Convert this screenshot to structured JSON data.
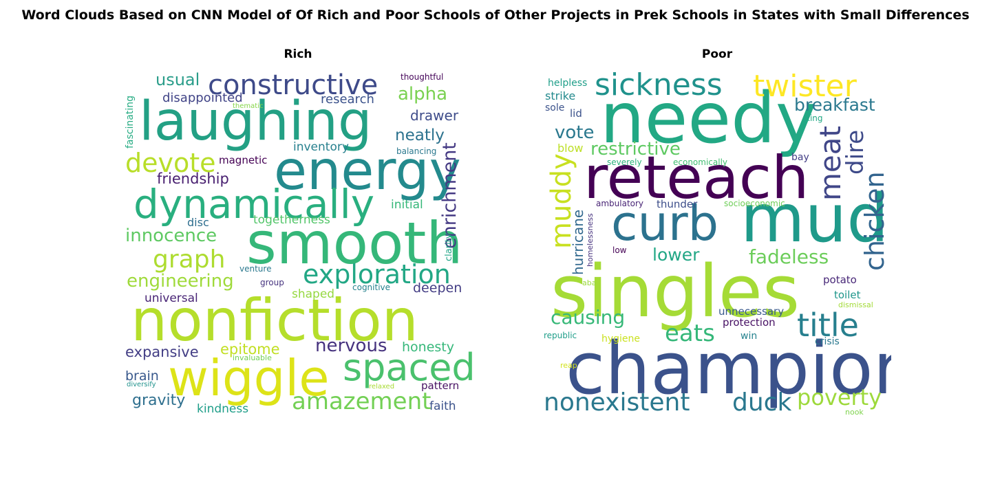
{
  "figure": {
    "title": "Word Clouds Based on CNN Model of Of Rich and Poor Schools of Other Projects in Prek Schools in States with Small Differences"
  },
  "panels": [
    {
      "title": "Rich",
      "words": [
        {
          "text": "laughing",
          "color": "#23a084"
        },
        {
          "text": "energy",
          "color": "#238a8d"
        },
        {
          "text": "smooth",
          "color": "#35b779"
        },
        {
          "text": "nonfiction",
          "color": "#b5de2b"
        },
        {
          "text": "dynamically",
          "color": "#29af7f"
        },
        {
          "text": "wiggle",
          "color": "#dde318"
        },
        {
          "text": "spaced",
          "color": "#4ac16d"
        },
        {
          "text": "constructive",
          "color": "#3e4a89"
        },
        {
          "text": "devote",
          "color": "#b8de29"
        },
        {
          "text": "exploration",
          "color": "#22a785"
        },
        {
          "text": "amazement",
          "color": "#73d055"
        },
        {
          "text": "graph",
          "color": "#addc30"
        },
        {
          "text": "enrichment",
          "color": "#443983"
        },
        {
          "text": "innocence",
          "color": "#5ec962"
        },
        {
          "text": "engineering",
          "color": "#9fda3a"
        },
        {
          "text": "nervous",
          "color": "#46327e"
        },
        {
          "text": "alpha",
          "color": "#7ad151"
        },
        {
          "text": "usual",
          "color": "#2a9d8a"
        },
        {
          "text": "neatly",
          "color": "#2c728e"
        },
        {
          "text": "friendship",
          "color": "#481f70"
        },
        {
          "text": "expansive",
          "color": "#433e85"
        },
        {
          "text": "epitome",
          "color": "#c2df23"
        },
        {
          "text": "honesty",
          "color": "#35b779"
        },
        {
          "text": "gravity",
          "color": "#2e6f8e"
        },
        {
          "text": "brain",
          "color": "#38588c"
        },
        {
          "text": "drawer",
          "color": "#3e4c8a"
        },
        {
          "text": "disappointed",
          "color": "#414487"
        },
        {
          "text": "research",
          "color": "#3b528b"
        },
        {
          "text": "deepen",
          "color": "#433d84"
        },
        {
          "text": "inventory",
          "color": "#27808e"
        },
        {
          "text": "universal",
          "color": "#482475"
        },
        {
          "text": "kindness",
          "color": "#1f9e89"
        },
        {
          "text": "faith",
          "color": "#3b528b"
        },
        {
          "text": "initial",
          "color": "#35b779"
        },
        {
          "text": "togetherness",
          "color": "#52c569"
        },
        {
          "text": "shaped",
          "color": "#95d840"
        },
        {
          "text": "disc",
          "color": "#2e6e8e"
        },
        {
          "text": "pattern",
          "color": "#471063"
        },
        {
          "text": "magnetic",
          "color": "#440154"
        },
        {
          "text": "fascinating",
          "color": "#25ab82"
        },
        {
          "text": "clarity",
          "color": "#20a486"
        },
        {
          "text": "thoughtful",
          "color": "#450559"
        },
        {
          "text": "balancing",
          "color": "#2a788e"
        },
        {
          "text": "venture",
          "color": "#2a788e"
        },
        {
          "text": "group",
          "color": "#46337f"
        },
        {
          "text": "cognitive",
          "color": "#26828e"
        },
        {
          "text": "invaluable",
          "color": "#73d055"
        },
        {
          "text": "thematic",
          "color": "#86d549"
        },
        {
          "text": "diversify",
          "color": "#20928c"
        },
        {
          "text": "relaxed",
          "color": "#a8db34"
        }
      ]
    },
    {
      "title": "Poor",
      "words": [
        {
          "text": "needy",
          "color": "#22a884"
        },
        {
          "text": "singles",
          "color": "#a5db36"
        },
        {
          "text": "champion",
          "color": "#3b528b"
        },
        {
          "text": "reteach",
          "color": "#440154"
        },
        {
          "text": "curb",
          "color": "#2c728e"
        },
        {
          "text": "mud",
          "color": "#1f9a8a"
        },
        {
          "text": "twister",
          "color": "#fde725"
        },
        {
          "text": "sickness",
          "color": "#20928c"
        },
        {
          "text": "meat",
          "color": "#404688"
        },
        {
          "text": "chicken",
          "color": "#32648e"
        },
        {
          "text": "title",
          "color": "#277f8e"
        },
        {
          "text": "muddy",
          "color": "#c8e020"
        },
        {
          "text": "nonexistent",
          "color": "#2a788e"
        },
        {
          "text": "duck",
          "color": "#2a788e"
        },
        {
          "text": "poverty",
          "color": "#9dd93b"
        },
        {
          "text": "dire",
          "color": "#3e4a89"
        },
        {
          "text": "restrictive",
          "color": "#5ec962"
        },
        {
          "text": "breakfast",
          "color": "#2a788e"
        },
        {
          "text": "fadeless",
          "color": "#6ccd5a"
        },
        {
          "text": "eats",
          "color": "#35b779"
        },
        {
          "text": "causing",
          "color": "#37b878"
        },
        {
          "text": "vote",
          "color": "#2a788e"
        },
        {
          "text": "hurricane",
          "color": "#31688e"
        },
        {
          "text": "lower",
          "color": "#22a785"
        },
        {
          "text": "strike",
          "color": "#238a8d"
        },
        {
          "text": "helpless",
          "color": "#1f9e89"
        },
        {
          "text": "blow",
          "color": "#bddf26"
        },
        {
          "text": "lid",
          "color": "#3b528b"
        },
        {
          "text": "sole",
          "color": "#3b528b"
        },
        {
          "text": "thunder",
          "color": "#3d4e8a"
        },
        {
          "text": "potato",
          "color": "#482878"
        },
        {
          "text": "toilet",
          "color": "#1f968b"
        },
        {
          "text": "unnecessary",
          "color": "#38598c"
        },
        {
          "text": "protection",
          "color": "#471164"
        },
        {
          "text": "hygiene",
          "color": "#cae11f"
        },
        {
          "text": "win",
          "color": "#26828e"
        },
        {
          "text": "crisis",
          "color": "#2a788e"
        },
        {
          "text": "republic",
          "color": "#1f9e89"
        },
        {
          "text": "bay",
          "color": "#433e85"
        },
        {
          "text": "king",
          "color": "#22a884"
        },
        {
          "text": "severely",
          "color": "#2eb37c"
        },
        {
          "text": "economically",
          "color": "#42be71"
        },
        {
          "text": "ambulatory",
          "color": "#482475"
        },
        {
          "text": "socioeconomic",
          "color": "#6ece58"
        },
        {
          "text": "homelessness",
          "color": "#46327e"
        },
        {
          "text": "low",
          "color": "#440154"
        },
        {
          "text": "aba",
          "color": "#9bd93c"
        },
        {
          "text": "dismissal",
          "color": "#a2da37"
        },
        {
          "text": "reap",
          "color": "#d2e21b"
        },
        {
          "text": "nook",
          "color": "#7fd34e"
        }
      ]
    }
  ]
}
